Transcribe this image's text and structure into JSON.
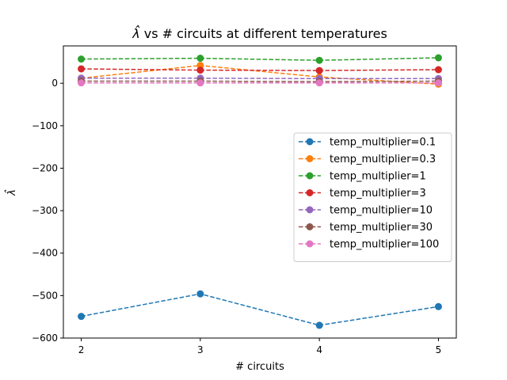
{
  "chart_data": {
    "type": "line",
    "title": "λ̂ vs # circuits at different temperatures",
    "title_prefix": "λ̂",
    "title_rest": " vs # circuits at different temperatures",
    "xlabel": "# circuits",
    "ylabel": "λ̂",
    "x": [
      2,
      3,
      4,
      5
    ],
    "xlim": [
      1.85,
      5.15
    ],
    "ylim": [
      -600,
      88
    ],
    "xticks": [
      2,
      3,
      4,
      5
    ],
    "yticks": [
      -600,
      -500,
      -400,
      -300,
      -200,
      -100,
      0
    ],
    "grid": false,
    "legend_position": "center-right",
    "series": [
      {
        "name": "temp_multiplier=0.1",
        "color": "#1f77b4",
        "values": [
          -549,
          -496,
          -570,
          -526
        ]
      },
      {
        "name": "temp_multiplier=0.3",
        "color": "#ff7f0e",
        "values": [
          12,
          42,
          15,
          -2
        ]
      },
      {
        "name": "temp_multiplier=1",
        "color": "#2ca02c",
        "values": [
          57,
          59,
          54,
          60
        ]
      },
      {
        "name": "temp_multiplier=3",
        "color": "#d62728",
        "values": [
          34,
          31,
          30,
          32
        ]
      },
      {
        "name": "temp_multiplier=10",
        "color": "#9467bd",
        "values": [
          12,
          12,
          11,
          11
        ]
      },
      {
        "name": "temp_multiplier=30",
        "color": "#8c564b",
        "values": [
          5,
          5,
          4,
          5
        ]
      },
      {
        "name": "temp_multiplier=100",
        "color": "#e377c2",
        "values": [
          1,
          1,
          1,
          1
        ]
      }
    ]
  }
}
